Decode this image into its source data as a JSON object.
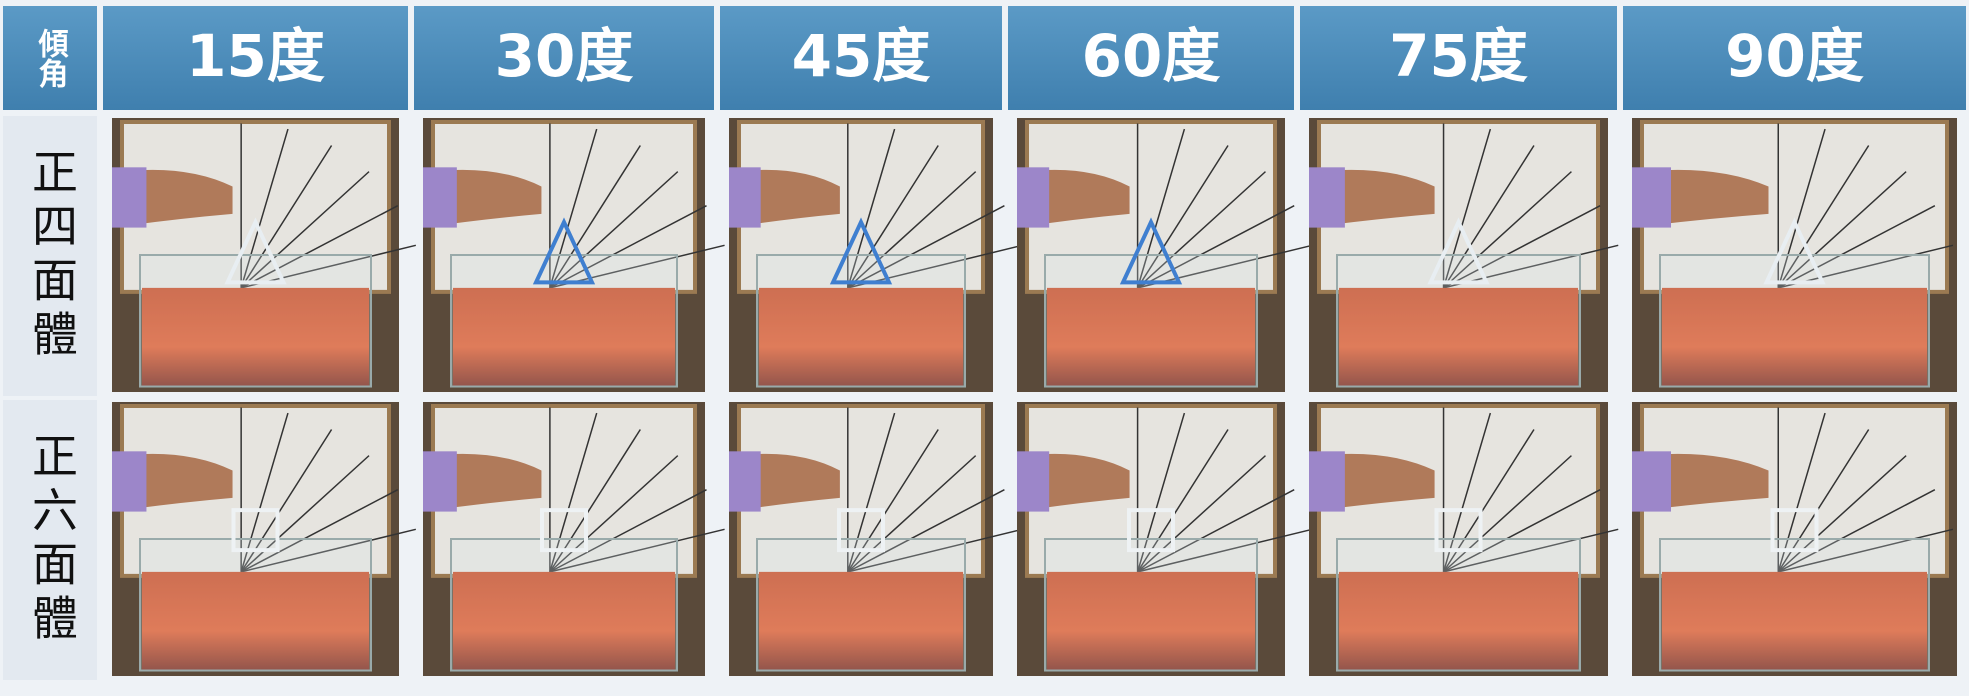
{
  "table": {
    "header": [
      "傾角",
      "15度",
      "30度",
      "45度",
      "60度",
      "75度",
      "90度"
    ],
    "rows": [
      {
        "label": "正四面體"
      },
      {
        "label": "正六面體"
      }
    ]
  }
}
